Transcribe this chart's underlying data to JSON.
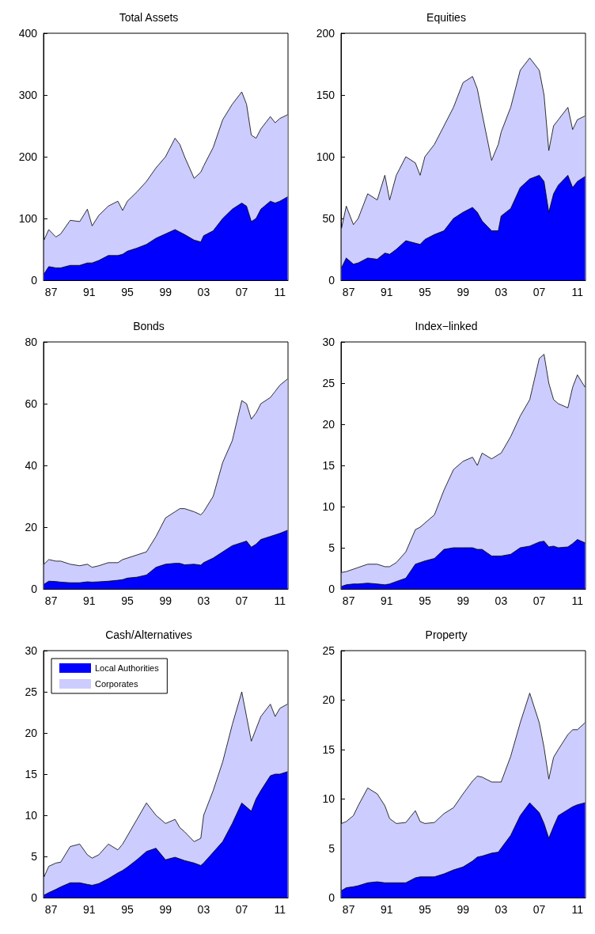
{
  "chart_data": [
    {
      "type": "area",
      "title": "Total Assets",
      "stacked": true,
      "x": [
        1986.25,
        1986.75,
        1987.5,
        1988,
        1989,
        1990,
        1990.8,
        1991.3,
        1992,
        1993,
        1994,
        1994.5,
        1995,
        1996,
        1997,
        1998,
        1999,
        2000,
        2000.5,
        2001,
        2002,
        2002.7,
        2003,
        2004,
        2005,
        2006,
        2007,
        2007.5,
        2008,
        2008.5,
        2009,
        2010,
        2010.5,
        2011,
        2011.8
      ],
      "xlim": [
        1986.2,
        2011.85
      ],
      "xticks": [
        {
          "value": 1987,
          "label": "87"
        },
        {
          "value": 1991,
          "label": "91"
        },
        {
          "value": 1995,
          "label": "95"
        },
        {
          "value": 1999,
          "label": "99"
        },
        {
          "value": 2003,
          "label": "03"
        },
        {
          "value": 2007,
          "label": "07"
        },
        {
          "value": 2011,
          "label": "11"
        }
      ],
      "ylim": [
        0,
        400
      ],
      "yticks": [
        0,
        100,
        200,
        300,
        400
      ],
      "series": [
        {
          "color": "#0000ff",
          "values": [
            10,
            22,
            20,
            20,
            24,
            24,
            28,
            28,
            32,
            40,
            40,
            42,
            47,
            52,
            58,
            68,
            75,
            82,
            78,
            74,
            65,
            62,
            72,
            80,
            100,
            115,
            125,
            120,
            95,
            100,
            115,
            128,
            125,
            128,
            135
          ]
        },
        {
          "color": "#ccccff",
          "values": [
            55,
            60,
            50,
            55,
            73,
            71,
            87,
            60,
            73,
            80,
            88,
            71,
            81,
            91,
            102,
            114,
            125,
            148,
            142,
            126,
            100,
            113,
            113,
            135,
            160,
            170,
            180,
            165,
            140,
            130,
            130,
            137,
            130,
            134,
            133
          ]
        }
      ]
    },
    {
      "type": "area",
      "title": "Equities",
      "stacked": true,
      "x": [
        1986.25,
        1986.75,
        1987.5,
        1988,
        1989,
        1990,
        1990.8,
        1991.3,
        1992,
        1993,
        1994,
        1994.5,
        1995,
        1996,
        1997,
        1998,
        1999,
        2000,
        2000.5,
        2001,
        2002,
        2002.7,
        2003,
        2004,
        2005,
        2006,
        2007,
        2007.5,
        2008,
        2008.5,
        2009,
        2010,
        2010.5,
        2011,
        2011.8
      ],
      "xlim": [
        1986.2,
        2011.85
      ],
      "xticks": [
        {
          "value": 1987,
          "label": "87"
        },
        {
          "value": 1991,
          "label": "91"
        },
        {
          "value": 1995,
          "label": "95"
        },
        {
          "value": 1999,
          "label": "99"
        },
        {
          "value": 2003,
          "label": "03"
        },
        {
          "value": 2007,
          "label": "07"
        },
        {
          "value": 2011,
          "label": "11"
        }
      ],
      "ylim": [
        0,
        200
      ],
      "yticks": [
        0,
        50,
        100,
        150,
        200
      ],
      "series": [
        {
          "color": "#0000ff",
          "values": [
            10,
            18,
            13,
            14,
            18,
            17,
            22,
            21,
            25,
            32,
            30,
            29,
            33,
            37,
            40,
            50,
            55,
            59,
            55,
            48,
            40,
            40,
            52,
            58,
            75,
            82,
            85,
            80,
            55,
            70,
            77,
            85,
            75,
            80,
            84
          ]
        },
        {
          "color": "#ccccff",
          "values": [
            32,
            42,
            32,
            36,
            52,
            48,
            63,
            44,
            60,
            68,
            65,
            56,
            67,
            73,
            85,
            90,
            105,
            106,
            100,
            87,
            57,
            70,
            68,
            82,
            95,
            98,
            85,
            70,
            50,
            55,
            53,
            55,
            47,
            50,
            49
          ]
        }
      ]
    },
    {
      "type": "area",
      "title": "Bonds",
      "stacked": true,
      "x": [
        1986.25,
        1986.75,
        1987.5,
        1988,
        1989,
        1990,
        1990.8,
        1991.3,
        1992,
        1993,
        1994,
        1994.5,
        1995,
        1996,
        1997,
        1998,
        1999,
        2000,
        2000.5,
        2001,
        2002,
        2002.7,
        2003,
        2004,
        2005,
        2006,
        2007,
        2007.5,
        2008,
        2008.5,
        2009,
        2010,
        2010.5,
        2011,
        2011.8
      ],
      "xlim": [
        1986.2,
        2011.85
      ],
      "xticks": [
        {
          "value": 1987,
          "label": "87"
        },
        {
          "value": 1991,
          "label": "91"
        },
        {
          "value": 1995,
          "label": "95"
        },
        {
          "value": 1999,
          "label": "99"
        },
        {
          "value": 2003,
          "label": "03"
        },
        {
          "value": 2007,
          "label": "07"
        },
        {
          "value": 2011,
          "label": "11"
        }
      ],
      "ylim": [
        0,
        80
      ],
      "yticks": [
        0,
        20,
        40,
        60,
        80
      ],
      "series": [
        {
          "color": "#0000ff",
          "values": [
            1.5,
            2.5,
            2.4,
            2.2,
            2,
            2,
            2.3,
            2.2,
            2.3,
            2.5,
            2.8,
            3,
            3.5,
            3.8,
            4.5,
            7,
            8,
            8.3,
            8.3,
            7.8,
            8,
            7.7,
            8.5,
            10,
            12,
            14,
            15,
            15.5,
            13.5,
            14.5,
            16,
            17,
            17.5,
            18,
            19
          ]
        },
        {
          "color": "#ccccff",
          "values": [
            6.5,
            7,
            6.6,
            6.8,
            6,
            5.5,
            5.7,
            4.8,
            5.2,
            6,
            5.7,
            6.5,
            6.5,
            7.2,
            7.5,
            10,
            15,
            16.7,
            17.7,
            18.2,
            17,
            16.3,
            16.5,
            20,
            29,
            34,
            46,
            44.5,
            41.5,
            42.5,
            44,
            45,
            46.5,
            48,
            49
          ]
        }
      ]
    },
    {
      "type": "area",
      "title": "Index−linked",
      "stacked": true,
      "x": [
        1986.25,
        1986.75,
        1987.5,
        1988,
        1989,
        1990,
        1990.8,
        1991.3,
        1992,
        1993,
        1994,
        1994.5,
        1995,
        1996,
        1997,
        1998,
        1999,
        2000,
        2000.5,
        2001,
        2002,
        2002.7,
        2003,
        2004,
        2005,
        2006,
        2007,
        2007.5,
        2008,
        2008.5,
        2009,
        2010,
        2010.5,
        2011,
        2011.8
      ],
      "xlim": [
        1986.2,
        2011.85
      ],
      "xticks": [
        {
          "value": 1987,
          "label": "87"
        },
        {
          "value": 1991,
          "label": "91"
        },
        {
          "value": 1995,
          "label": "95"
        },
        {
          "value": 1999,
          "label": "99"
        },
        {
          "value": 2003,
          "label": "03"
        },
        {
          "value": 2007,
          "label": "07"
        },
        {
          "value": 2011,
          "label": "11"
        }
      ],
      "ylim": [
        0,
        30
      ],
      "yticks": [
        0,
        5,
        10,
        15,
        20,
        25,
        30
      ],
      "series": [
        {
          "color": "#0000ff",
          "values": [
            0.3,
            0.5,
            0.6,
            0.6,
            0.7,
            0.6,
            0.5,
            0.6,
            0.9,
            1.3,
            3,
            3.2,
            3.4,
            3.7,
            4.8,
            5,
            5,
            5,
            4.8,
            4.8,
            4,
            4,
            4,
            4.2,
            5,
            5.2,
            5.7,
            5.8,
            5.1,
            5.2,
            5,
            5.1,
            5.5,
            6,
            5.6
          ]
        },
        {
          "color": "#ccccff",
          "values": [
            1.7,
            1.6,
            1.8,
            2.0,
            2.3,
            2.4,
            2.2,
            2.1,
            2.3,
            3.2,
            4.2,
            4.3,
            4.6,
            5.3,
            7.2,
            9.5,
            10.5,
            11,
            10.2,
            11.7,
            11.8,
            12.3,
            12.5,
            14.3,
            16,
            17.8,
            22.3,
            22.7,
            19.9,
            17.8,
            17.5,
            16.9,
            19,
            20,
            18.9
          ]
        }
      ]
    },
    {
      "type": "area",
      "title": "Cash/Alternatives",
      "stacked": true,
      "legend": "top left",
      "x": [
        1986.25,
        1986.75,
        1987.5,
        1988,
        1989,
        1990,
        1990.8,
        1991.3,
        1992,
        1993,
        1994,
        1994.5,
        1995,
        1996,
        1997,
        1998,
        1999,
        2000,
        2000.5,
        2001,
        2002,
        2002.7,
        2003,
        2004,
        2005,
        2006,
        2007,
        2007.5,
        2008,
        2008.5,
        2009,
        2010,
        2010.5,
        2011,
        2011.8
      ],
      "xlim": [
        1986.2,
        2011.85
      ],
      "xticks": [
        {
          "value": 1987,
          "label": "87"
        },
        {
          "value": 1991,
          "label": "91"
        },
        {
          "value": 1995,
          "label": "95"
        },
        {
          "value": 1999,
          "label": "99"
        },
        {
          "value": 2003,
          "label": "03"
        },
        {
          "value": 2007,
          "label": "07"
        },
        {
          "value": 2011,
          "label": "11"
        }
      ],
      "ylim": [
        0,
        30
      ],
      "yticks": [
        0,
        5,
        10,
        15,
        20,
        25,
        30
      ],
      "series": [
        {
          "name": "Local Authorities",
          "color": "#0000ff",
          "values": [
            0.3,
            0.6,
            1,
            1.3,
            1.8,
            1.8,
            1.6,
            1.5,
            1.7,
            2.3,
            3.0,
            3.3,
            3.7,
            4.6,
            5.6,
            6.0,
            4.6,
            4.9,
            4.7,
            4.5,
            4.2,
            3.9,
            4.2,
            5.5,
            6.8,
            9,
            11.5,
            11,
            10.5,
            12,
            13,
            14.8,
            15,
            15,
            15.3
          ]
        },
        {
          "name": "Corporates",
          "color": "#ccccff",
          "values": [
            2.2,
            3.2,
            3.2,
            3.0,
            4.4,
            4.7,
            3.6,
            3.3,
            3.5,
            4.2,
            2.8,
            3.2,
            3.8,
            4.9,
            5.9,
            4.0,
            4.4,
            4.6,
            3.8,
            3.5,
            2.6,
            3.3,
            5.8,
            7.5,
            9.7,
            12,
            13.5,
            11,
            8.5,
            8.5,
            9,
            8.7,
            7,
            8,
            8.2
          ]
        }
      ]
    },
    {
      "type": "area",
      "title": "Property",
      "stacked": true,
      "x": [
        1986.25,
        1986.75,
        1987.5,
        1988,
        1989,
        1990,
        1990.8,
        1991.3,
        1992,
        1993,
        1994,
        1994.5,
        1995,
        1996,
        1997,
        1998,
        1999,
        2000,
        2000.5,
        2001,
        2002,
        2002.7,
        2003,
        2004,
        2005,
        2006,
        2007,
        2007.5,
        2008,
        2008.5,
        2009,
        2010,
        2010.5,
        2011,
        2011.8
      ],
      "xlim": [
        1986.2,
        2011.85
      ],
      "xticks": [
        {
          "value": 1987,
          "label": "87"
        },
        {
          "value": 1991,
          "label": "91"
        },
        {
          "value": 1995,
          "label": "95"
        },
        {
          "value": 1999,
          "label": "99"
        },
        {
          "value": 2003,
          "label": "03"
        },
        {
          "value": 2007,
          "label": "07"
        },
        {
          "value": 2011,
          "label": "11"
        }
      ],
      "ylim": [
        0,
        25
      ],
      "yticks": [
        0,
        5,
        10,
        15,
        20,
        25
      ],
      "series": [
        {
          "color": "#0000ff",
          "values": [
            0.7,
            1,
            1.1,
            1.2,
            1.5,
            1.6,
            1.5,
            1.5,
            1.5,
            1.5,
            2.0,
            2.1,
            2.1,
            2.1,
            2.4,
            2.8,
            3.1,
            3.7,
            4.1,
            4.2,
            4.5,
            4.6,
            5.0,
            6.3,
            8.3,
            9.6,
            8.6,
            7.5,
            6.0,
            7.2,
            8.3,
            8.9,
            9.2,
            9.4,
            9.6
          ]
        },
        {
          "color": "#ccccff",
          "values": [
            6.8,
            6.7,
            7.2,
            8.1,
            9.6,
            8.9,
            7.8,
            6.5,
            6.0,
            6.1,
            6.8,
            5.6,
            5.4,
            5.5,
            6.1,
            6.3,
            7.4,
            8.1,
            8.2,
            8.0,
            7.2,
            7.1,
            6.7,
            8.0,
            9.4,
            11.1,
            9.1,
            7.7,
            6.0,
            7.0,
            6.7,
            7.6,
            7.8,
            7.6,
            8.1
          ]
        }
      ]
    }
  ]
}
